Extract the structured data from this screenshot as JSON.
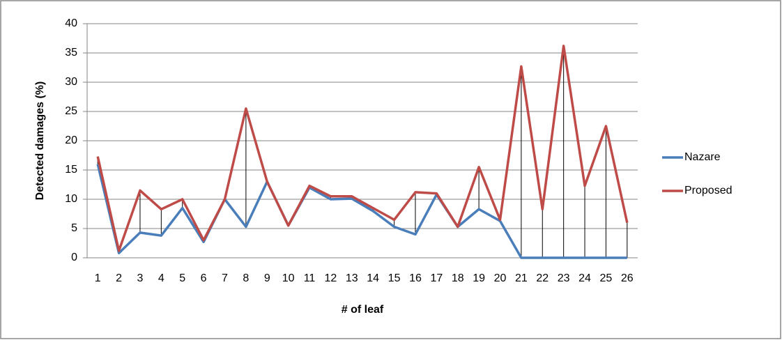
{
  "chart_data": {
    "type": "line",
    "y_label": "Detected damages (%)",
    "x_label": "# of leaf",
    "categories": [
      "1",
      "2",
      "3",
      "4",
      "5",
      "6",
      "7",
      "8",
      "9",
      "10",
      "11",
      "12",
      "13",
      "14",
      "15",
      "16",
      "17",
      "18",
      "19",
      "20",
      "21",
      "22",
      "23",
      "24",
      "25",
      "26"
    ],
    "series": [
      {
        "name": "Nazare",
        "color": "#4a7ebb",
        "values": [
          16,
          0.8,
          4.3,
          3.8,
          8.5,
          2.7,
          10,
          5.3,
          13,
          5.5,
          12,
          10,
          10.1,
          8,
          5.3,
          4,
          10.8,
          5.3,
          8.3,
          6.3,
          0,
          0,
          0,
          0,
          0,
          0
        ]
      },
      {
        "name": "Proposed",
        "color": "#be4b48",
        "values": [
          17.3,
          1.2,
          11.5,
          8.3,
          10,
          3,
          10,
          25.5,
          13,
          5.5,
          12.3,
          10.5,
          10.5,
          8.5,
          6.5,
          11.2,
          11,
          5.3,
          15.5,
          6.5,
          32.7,
          8.3,
          36.2,
          12.3,
          22.5,
          6
        ]
      }
    ],
    "ylim": [
      0,
      40
    ],
    "yticks": [
      0,
      5,
      10,
      15,
      20,
      25,
      30,
      35,
      40
    ],
    "grid": true,
    "high_low_lines": true,
    "legend": "right"
  }
}
